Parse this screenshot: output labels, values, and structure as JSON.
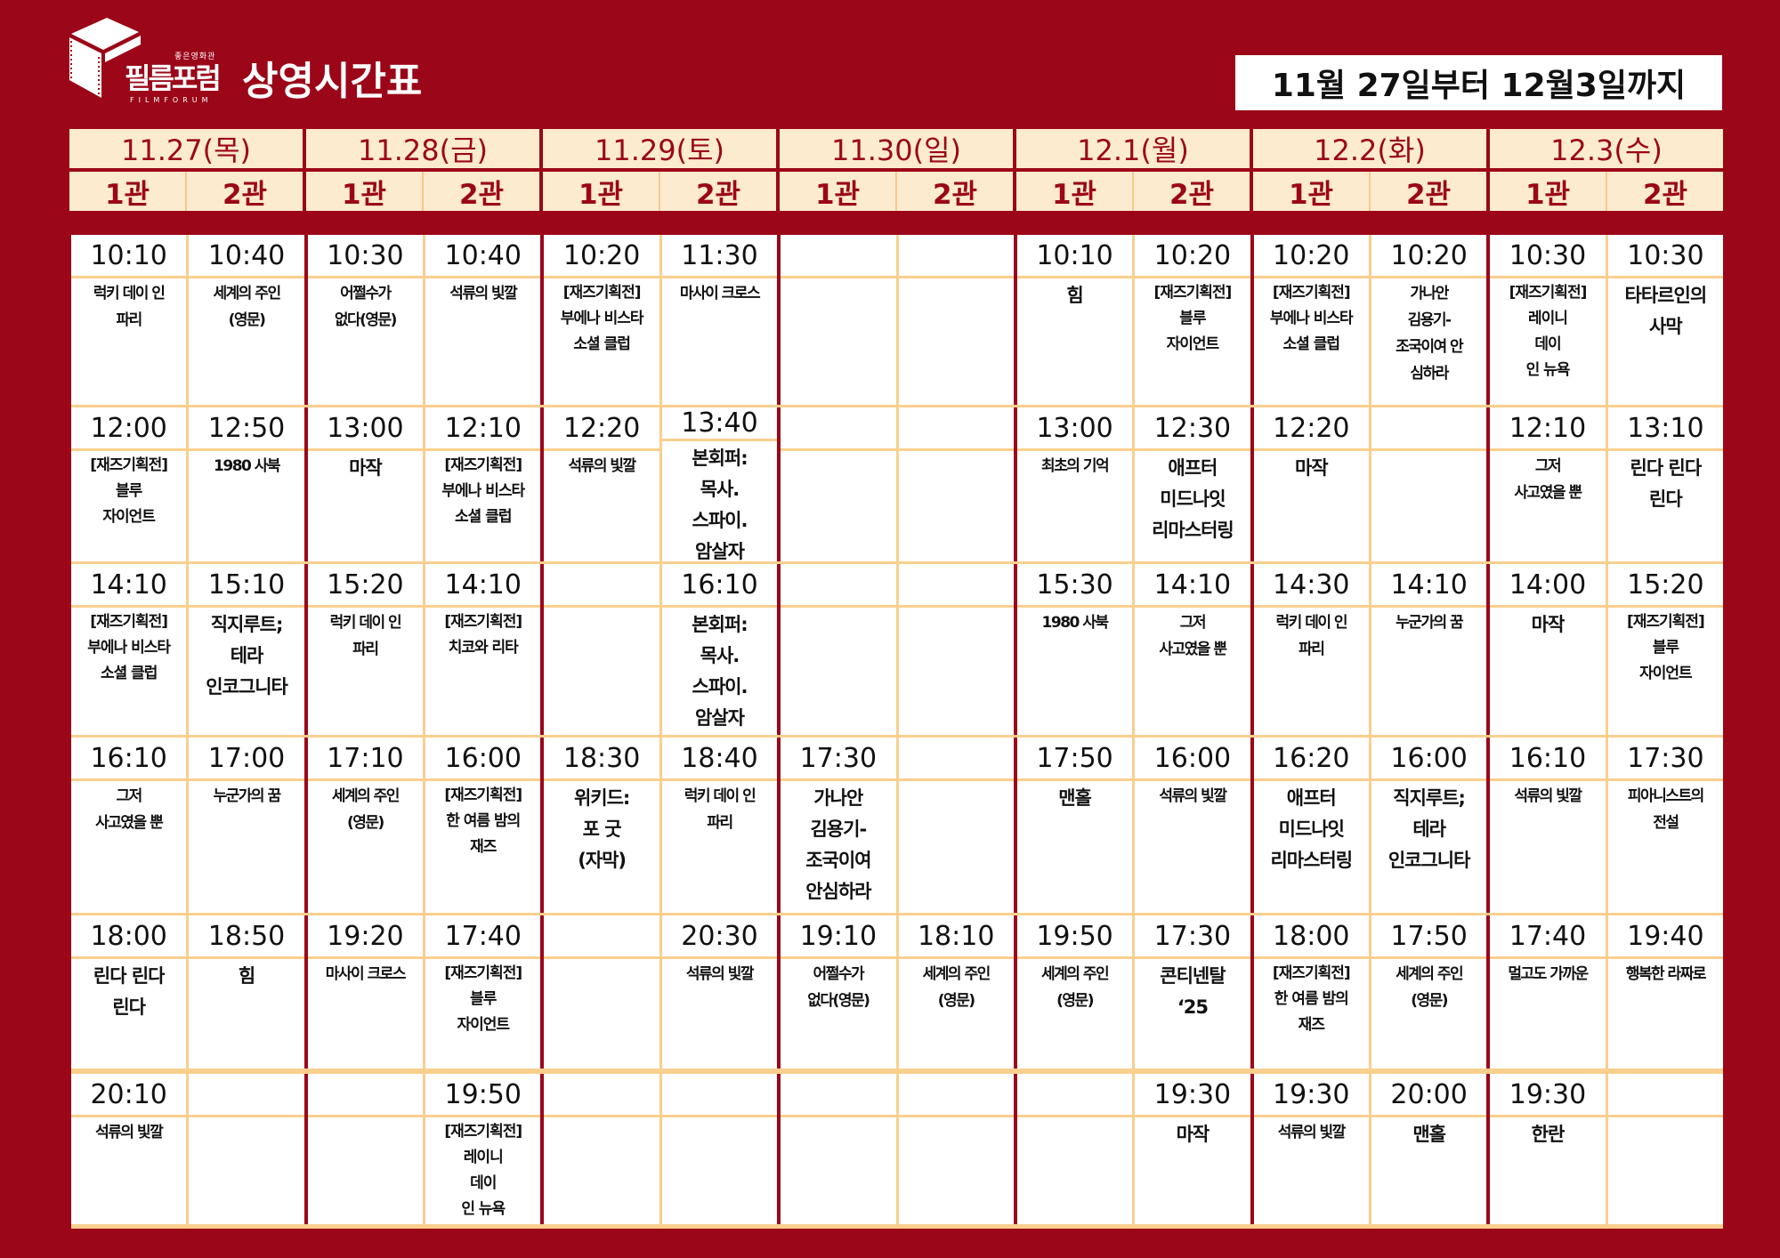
{
  "brand": {
    "name": "필름포럼",
    "sub": "FILMFORUM",
    "tag": "좋은영화관"
  },
  "title": "상영시간표",
  "date_range": "11월 27일부터 12월3일까지",
  "colors": {
    "background": "#9b0718",
    "header_cell": "#fdebd0",
    "grid_line": "#f9cf8e"
  },
  "days": [
    {
      "date": "11.27(목)",
      "halls": [
        "1관",
        "2관"
      ]
    },
    {
      "date": "11.28(금)",
      "halls": [
        "1관",
        "2관"
      ]
    },
    {
      "date": "11.29(토)",
      "halls": [
        "1관",
        "2관"
      ]
    },
    {
      "date": "11.30(일)",
      "halls": [
        "1관",
        "2관"
      ]
    },
    {
      "date": "12.1(월)",
      "halls": [
        "1관",
        "2관"
      ]
    },
    {
      "date": "12.2(화)",
      "halls": [
        "1관",
        "2관"
      ]
    },
    {
      "date": "12.3(수)",
      "halls": [
        "1관",
        "2관"
      ]
    }
  ],
  "rows": [
    [
      {
        "time": "10:10",
        "title": "럭키 데이 인\n파리"
      },
      {
        "time": "10:40",
        "title": "세계의 주인\n(영문)"
      },
      {
        "time": "10:30",
        "title": "어쩔수가\n없다(영문)"
      },
      {
        "time": "10:40",
        "title": "석류의 빛깔"
      },
      {
        "time": "10:20",
        "title": "[재즈기획전]\n부에나 비스타\n소셜 클럽"
      },
      {
        "time": "11:30",
        "title": "마사이 크로스"
      },
      {
        "time": "",
        "title": ""
      },
      {
        "time": "",
        "title": ""
      },
      {
        "time": "10:10",
        "title": "힘"
      },
      {
        "time": "10:20",
        "title": "[재즈기획전]\n블루\n자이언트"
      },
      {
        "time": "10:20",
        "title": "[재즈기획전]\n부에나 비스타\n소셜 클럽"
      },
      {
        "time": "10:20",
        "title": "가나안\n김용기-\n조국이여 안\n심하라"
      },
      {
        "time": "10:30",
        "title": "[재즈기획전]\n레이니\n데이\n인 뉴욕"
      },
      {
        "time": "10:30",
        "title": "타타르인의\n사막"
      }
    ],
    [
      {
        "time": "12:00",
        "title": "[재즈기획전]\n블루\n자이언트"
      },
      {
        "time": "12:50",
        "title": "1980 사북"
      },
      {
        "time": "13:00",
        "title": "마작"
      },
      {
        "time": "12:10",
        "title": "[재즈기획전]\n부에나 비스타\n소셜 클럽"
      },
      {
        "time": "12:20",
        "title": "석류의 빛깔"
      },
      {
        "time": "13:40",
        "title": "본회퍼:\n목사.\n스파이.\n암살자"
      },
      {
        "time": "",
        "title": ""
      },
      {
        "time": "",
        "title": ""
      },
      {
        "time": "13:00",
        "title": "최초의 기억"
      },
      {
        "time": "12:30",
        "title": "애프터\n미드나잇\n리마스터링"
      },
      {
        "time": "12:20",
        "title": "마작"
      },
      {
        "time": "",
        "title": ""
      },
      {
        "time": "12:10",
        "title": "그저\n사고였을 뿐"
      },
      {
        "time": "13:10",
        "title": "린다 린다\n린다"
      }
    ],
    [
      {
        "time": "14:10",
        "title": "[재즈기획전]\n부에나 비스타\n소셜 클럽"
      },
      {
        "time": "15:10",
        "title": "직지루트;\n테라\n인코그니타"
      },
      {
        "time": "15:20",
        "title": "럭키 데이 인\n파리"
      },
      {
        "time": "14:10",
        "title": "[재즈기획전]\n치코와 리타"
      },
      {
        "time": "",
        "title": ""
      },
      {
        "time": "16:10",
        "title": "본회퍼:\n목사.\n스파이.\n암살자"
      },
      {
        "time": "",
        "title": ""
      },
      {
        "time": "",
        "title": ""
      },
      {
        "time": "15:30",
        "title": "1980 사북"
      },
      {
        "time": "14:10",
        "title": "그저\n사고였을 뿐"
      },
      {
        "time": "14:30",
        "title": "럭키 데이 인\n파리"
      },
      {
        "time": "14:10",
        "title": "누군가의 꿈"
      },
      {
        "time": "14:00",
        "title": "마작"
      },
      {
        "time": "15:20",
        "title": "[재즈기획전]\n블루\n자이언트"
      }
    ],
    [
      {
        "time": "16:10",
        "title": "그저\n사고였을 뿐"
      },
      {
        "time": "17:00",
        "title": "누군가의 꿈"
      },
      {
        "time": "17:10",
        "title": "세계의 주인\n(영문)"
      },
      {
        "time": "16:00",
        "title": "[재즈기획전]\n한 여름 밤의\n재즈"
      },
      {
        "time": "18:30",
        "title": "위키드:\n포 굿\n(자막)"
      },
      {
        "time": "18:40",
        "title": "럭키 데이 인\n파리"
      },
      {
        "time": "17:30",
        "title": "가나안\n김용기-\n조국이여\n안심하라"
      },
      {
        "time": "",
        "title": ""
      },
      {
        "time": "17:50",
        "title": "맨홀"
      },
      {
        "time": "16:00",
        "title": "석류의 빛깔"
      },
      {
        "time": "16:20",
        "title": "애프터\n미드나잇\n리마스터링"
      },
      {
        "time": "16:00",
        "title": "직지루트;\n테라\n인코그니타"
      },
      {
        "time": "16:10",
        "title": "석류의 빛깔"
      },
      {
        "time": "17:30",
        "title": "피아니스트의\n전설"
      }
    ],
    [
      {
        "time": "18:00",
        "title": "린다 린다\n린다"
      },
      {
        "time": "18:50",
        "title": "힘"
      },
      {
        "time": "19:20",
        "title": "마사이 크로스"
      },
      {
        "time": "17:40",
        "title": "[재즈기획전]\n블루\n자이언트"
      },
      {
        "time": "",
        "title": ""
      },
      {
        "time": "20:30",
        "title": "석류의 빛깔"
      },
      {
        "time": "19:10",
        "title": "어쩔수가\n없다(영문)"
      },
      {
        "time": "18:10",
        "title": "세계의 주인\n(영문)"
      },
      {
        "time": "19:50",
        "title": "세계의 주인\n(영문)"
      },
      {
        "time": "17:30",
        "title": "콘티넨탈\n‘25"
      },
      {
        "time": "18:00",
        "title": "[재즈기획전]\n한 여름 밤의\n재즈"
      },
      {
        "time": "17:50",
        "title": "세계의 주인\n(영문)"
      },
      {
        "time": "17:40",
        "title": "멀고도 가까운"
      },
      {
        "time": "19:40",
        "title": "행복한 라짜로"
      }
    ],
    [
      {
        "time": "20:10",
        "title": "석류의 빛깔"
      },
      {
        "time": "",
        "title": ""
      },
      {
        "time": "",
        "title": ""
      },
      {
        "time": "19:50",
        "title": "[재즈기획전]\n레이니\n데이\n인 뉴욕"
      },
      {
        "time": "",
        "title": ""
      },
      {
        "time": "",
        "title": ""
      },
      {
        "time": "",
        "title": ""
      },
      {
        "time": "",
        "title": ""
      },
      {
        "time": "",
        "title": ""
      },
      {
        "time": "19:30",
        "title": "마작"
      },
      {
        "time": "19:30",
        "title": "석류의 빛깔"
      },
      {
        "time": "20:00",
        "title": "맨홀"
      },
      {
        "time": "19:30",
        "title": "한란"
      },
      {
        "time": "",
        "title": ""
      }
    ]
  ]
}
